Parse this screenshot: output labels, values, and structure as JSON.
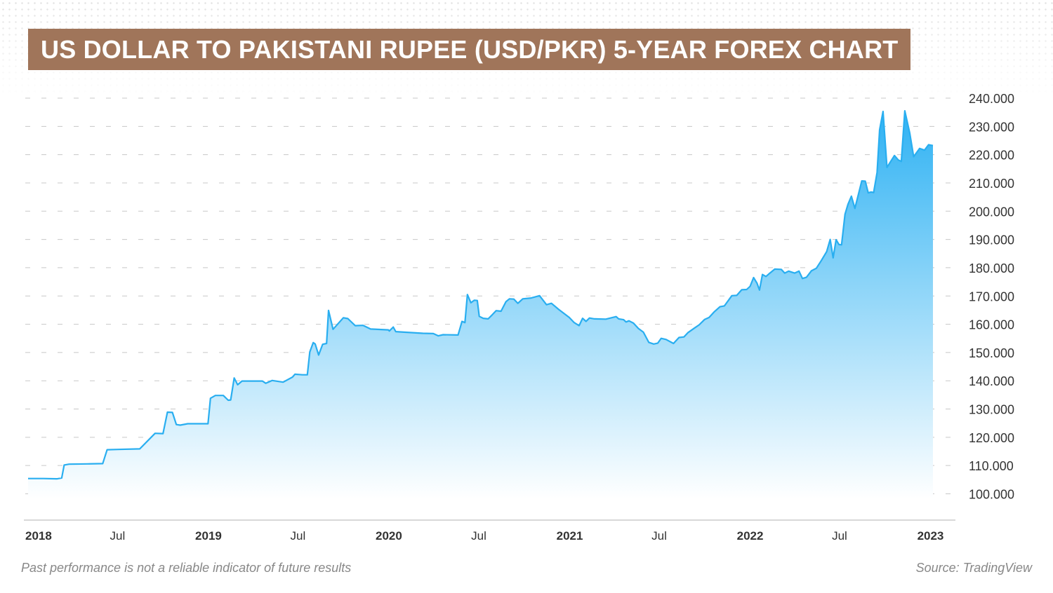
{
  "title": "US DOLLAR TO PAKISTANI RUPEE (USD/PKR) 5-YEAR FOREX CHART",
  "footnote": "Past performance is not a reliable indicator of future results",
  "source": "Source: TradingView",
  "colors": {
    "title_bg": "#a0755a",
    "line": "#29aef0",
    "fill_top": "#2fb2f3",
    "fill_bottom": "#ffffff",
    "grid": "#c8c8c8"
  },
  "chart_data": {
    "type": "area",
    "title": "US DOLLAR TO PAKISTANI RUPEE (USD/PKR) 5-YEAR FOREX CHART",
    "xlabel": "",
    "ylabel": "",
    "ylim": [
      97,
      246
    ],
    "xlim": [
      "2018-01-01",
      "2023-01-06"
    ],
    "y_ticks": [
      100,
      110,
      120,
      130,
      140,
      150,
      160,
      170,
      180,
      190,
      200,
      210,
      220,
      230,
      240
    ],
    "y_tick_labels": [
      "100.000",
      "110.000",
      "120.000",
      "130.000",
      "140.000",
      "150.000",
      "160.000",
      "170.000",
      "180.000",
      "190.000",
      "200.000",
      "210.000",
      "220.000",
      "230.000",
      "240.000"
    ],
    "x_ticks": [
      {
        "date": "2018-01-01",
        "label": "2018",
        "bold": true
      },
      {
        "date": "2018-07-01",
        "label": "Jul",
        "bold": false
      },
      {
        "date": "2019-01-01",
        "label": "2019",
        "bold": true
      },
      {
        "date": "2019-07-01",
        "label": "Jul",
        "bold": false
      },
      {
        "date": "2020-01-01",
        "label": "2020",
        "bold": true
      },
      {
        "date": "2020-07-01",
        "label": "Jul",
        "bold": false
      },
      {
        "date": "2021-01-01",
        "label": "2021",
        "bold": true
      },
      {
        "date": "2021-07-01",
        "label": "Jul",
        "bold": false
      },
      {
        "date": "2022-01-01",
        "label": "2022",
        "bold": true
      },
      {
        "date": "2022-07-01",
        "label": "Jul",
        "bold": false
      },
      {
        "date": "2023-01-01",
        "label": "2023",
        "bold": true
      }
    ],
    "grid": true,
    "y_axis_position": "right",
    "series": [
      {
        "points": [
          [
            "2018-01-01",
            105.4
          ],
          [
            "2018-02-01",
            105.4
          ],
          [
            "2018-03-01",
            105.3
          ],
          [
            "2018-03-10",
            105.6
          ],
          [
            "2018-03-15",
            110.2
          ],
          [
            "2018-03-25",
            110.5
          ],
          [
            "2018-05-01",
            110.6
          ],
          [
            "2018-06-01",
            110.7
          ],
          [
            "2018-06-10",
            115.6
          ],
          [
            "2018-07-01",
            115.7
          ],
          [
            "2018-08-15",
            115.9
          ],
          [
            "2018-09-15",
            121.4
          ],
          [
            "2018-10-01",
            121.3
          ],
          [
            "2018-10-10",
            128.9
          ],
          [
            "2018-10-20",
            128.8
          ],
          [
            "2018-10-28",
            124.5
          ],
          [
            "2018-11-05",
            124.3
          ],
          [
            "2018-11-20",
            124.8
          ],
          [
            "2018-12-31",
            124.8
          ],
          [
            "2019-01-05",
            133.8
          ],
          [
            "2019-01-15",
            134.8
          ],
          [
            "2019-01-31",
            134.8
          ],
          [
            "2019-02-10",
            133.1
          ],
          [
            "2019-02-15",
            133.2
          ],
          [
            "2019-02-22",
            141.0
          ],
          [
            "2019-03-01",
            138.6
          ],
          [
            "2019-03-10",
            139.9
          ],
          [
            "2019-04-20",
            139.9
          ],
          [
            "2019-04-27",
            139.1
          ],
          [
            "2019-05-10",
            140.1
          ],
          [
            "2019-06-01",
            139.5
          ],
          [
            "2019-06-20",
            141.3
          ],
          [
            "2019-06-25",
            142.3
          ],
          [
            "2019-07-10",
            142.1
          ],
          [
            "2019-07-20",
            142.1
          ],
          [
            "2019-07-25",
            150.2
          ],
          [
            "2019-08-01",
            153.5
          ],
          [
            "2019-08-05",
            153.0
          ],
          [
            "2019-08-12",
            149.1
          ],
          [
            "2019-08-20",
            152.9
          ],
          [
            "2019-08-28",
            153.2
          ],
          [
            "2019-09-01",
            164.9
          ],
          [
            "2019-09-10",
            158.2
          ],
          [
            "2019-10-01",
            162.3
          ],
          [
            "2019-10-10",
            162.0
          ],
          [
            "2019-10-25",
            159.5
          ],
          [
            "2019-11-10",
            159.6
          ],
          [
            "2019-11-25",
            158.3
          ],
          [
            "2019-12-31",
            158.0
          ],
          [
            "2020-01-02",
            157.6
          ],
          [
            "2020-01-10",
            159.0
          ],
          [
            "2020-01-15",
            157.4
          ],
          [
            "2020-02-01",
            157.2
          ],
          [
            "2020-03-10",
            156.8
          ],
          [
            "2020-03-31",
            156.7
          ],
          [
            "2020-04-10",
            155.9
          ],
          [
            "2020-04-20",
            156.3
          ],
          [
            "2020-05-20",
            156.2
          ],
          [
            "2020-05-28",
            161.0
          ],
          [
            "2020-06-03",
            160.6
          ],
          [
            "2020-06-08",
            170.5
          ],
          [
            "2020-06-15",
            167.6
          ],
          [
            "2020-06-22",
            168.5
          ],
          [
            "2020-06-28",
            168.4
          ],
          [
            "2020-07-02",
            162.8
          ],
          [
            "2020-07-10",
            162.1
          ],
          [
            "2020-07-20",
            161.9
          ],
          [
            "2020-07-28",
            163.3
          ],
          [
            "2020-08-05",
            164.8
          ],
          [
            "2020-08-15",
            164.6
          ],
          [
            "2020-08-25",
            168.0
          ],
          [
            "2020-09-01",
            169.0
          ],
          [
            "2020-09-10",
            168.9
          ],
          [
            "2020-09-18",
            167.4
          ],
          [
            "2020-09-28",
            169.0
          ],
          [
            "2020-10-15",
            169.3
          ],
          [
            "2020-11-01",
            170.1
          ],
          [
            "2020-11-15",
            166.9
          ],
          [
            "2020-11-25",
            167.4
          ],
          [
            "2020-12-10",
            165.2
          ],
          [
            "2020-12-31",
            162.4
          ],
          [
            "2021-01-10",
            160.6
          ],
          [
            "2021-01-20",
            159.5
          ],
          [
            "2021-01-27",
            162.1
          ],
          [
            "2021-02-03",
            161.0
          ],
          [
            "2021-02-10",
            162.2
          ],
          [
            "2021-02-20",
            161.9
          ],
          [
            "2021-03-15",
            161.8
          ],
          [
            "2021-04-05",
            162.7
          ],
          [
            "2021-04-10",
            161.9
          ],
          [
            "2021-04-20",
            161.6
          ],
          [
            "2021-04-25",
            160.8
          ],
          [
            "2021-05-01",
            161.2
          ],
          [
            "2021-05-10",
            160.4
          ],
          [
            "2021-05-20",
            158.5
          ],
          [
            "2021-05-30",
            157.2
          ],
          [
            "2021-06-10",
            153.6
          ],
          [
            "2021-06-20",
            153.0
          ],
          [
            "2021-06-28",
            153.3
          ],
          [
            "2021-07-05",
            155.0
          ],
          [
            "2021-07-15",
            154.6
          ],
          [
            "2021-07-30",
            153.2
          ],
          [
            "2021-08-10",
            155.3
          ],
          [
            "2021-08-20",
            155.5
          ],
          [
            "2021-08-28",
            157.0
          ],
          [
            "2021-09-10",
            158.6
          ],
          [
            "2021-09-20",
            159.8
          ],
          [
            "2021-10-01",
            161.7
          ],
          [
            "2021-10-10",
            162.4
          ],
          [
            "2021-10-20",
            164.3
          ],
          [
            "2021-11-01",
            166.2
          ],
          [
            "2021-11-10",
            166.5
          ],
          [
            "2021-11-25",
            170.1
          ],
          [
            "2021-12-05",
            170.2
          ],
          [
            "2021-12-15",
            172.2
          ],
          [
            "2021-12-25",
            172.3
          ],
          [
            "2022-01-01",
            173.4
          ],
          [
            "2022-01-08",
            176.5
          ],
          [
            "2022-01-15",
            174.5
          ],
          [
            "2022-01-20",
            172.1
          ],
          [
            "2022-01-26",
            177.6
          ],
          [
            "2022-02-02",
            176.9
          ],
          [
            "2022-02-10",
            178.1
          ],
          [
            "2022-02-20",
            179.5
          ],
          [
            "2022-03-05",
            179.4
          ],
          [
            "2022-03-12",
            178.1
          ],
          [
            "2022-03-20",
            178.8
          ],
          [
            "2022-04-01",
            178.1
          ],
          [
            "2022-04-10",
            178.8
          ],
          [
            "2022-04-17",
            176.2
          ],
          [
            "2022-04-25",
            176.6
          ],
          [
            "2022-05-05",
            178.9
          ],
          [
            "2022-05-15",
            179.8
          ],
          [
            "2022-05-25",
            182.5
          ],
          [
            "2022-06-05",
            185.7
          ],
          [
            "2022-06-12",
            190.0
          ],
          [
            "2022-06-18",
            183.5
          ],
          [
            "2022-06-24",
            189.9
          ],
          [
            "2022-06-30",
            188.2
          ],
          [
            "2022-07-05",
            188.1
          ],
          [
            "2022-07-12",
            198.9
          ],
          [
            "2022-07-18",
            202.4
          ],
          [
            "2022-07-25",
            205.3
          ],
          [
            "2022-08-01",
            201.0
          ],
          [
            "2022-08-15",
            210.7
          ],
          [
            "2022-08-22",
            210.6
          ],
          [
            "2022-08-28",
            206.5
          ],
          [
            "2022-09-03",
            206.8
          ],
          [
            "2022-09-08",
            206.6
          ],
          [
            "2022-09-15",
            213.7
          ],
          [
            "2022-09-20",
            228.8
          ],
          [
            "2022-09-27",
            235.3
          ],
          [
            "2022-10-05",
            215.5
          ],
          [
            "2022-10-20",
            219.7
          ],
          [
            "2022-10-28",
            218.1
          ],
          [
            "2022-11-03",
            217.6
          ],
          [
            "2022-11-10",
            235.5
          ],
          [
            "2022-11-20",
            227.7
          ],
          [
            "2022-11-28",
            219.3
          ],
          [
            "2022-12-10",
            222.2
          ],
          [
            "2022-12-20",
            221.6
          ],
          [
            "2022-12-28",
            223.5
          ],
          [
            "2023-01-06",
            223.2
          ]
        ]
      }
    ]
  }
}
